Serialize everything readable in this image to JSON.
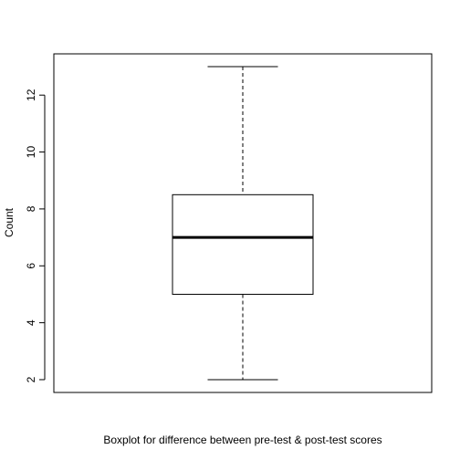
{
  "chart_data": {
    "type": "boxplot",
    "title": "",
    "xlabel": "Boxplot for difference between pre-test & post-test scores",
    "ylabel": "Count",
    "ylim": [
      1.55,
      13.45
    ],
    "yticks": [
      2,
      4,
      6,
      8,
      10,
      12
    ],
    "yticks_labels": [
      "2",
      "4",
      "6",
      "8",
      "10",
      "12"
    ],
    "grid": false,
    "box": {
      "min": 2,
      "q1": 5,
      "median": 7,
      "q3": 8.5,
      "max": 13
    },
    "colors": {
      "line": "#000000",
      "background": "#ffffff"
    }
  }
}
